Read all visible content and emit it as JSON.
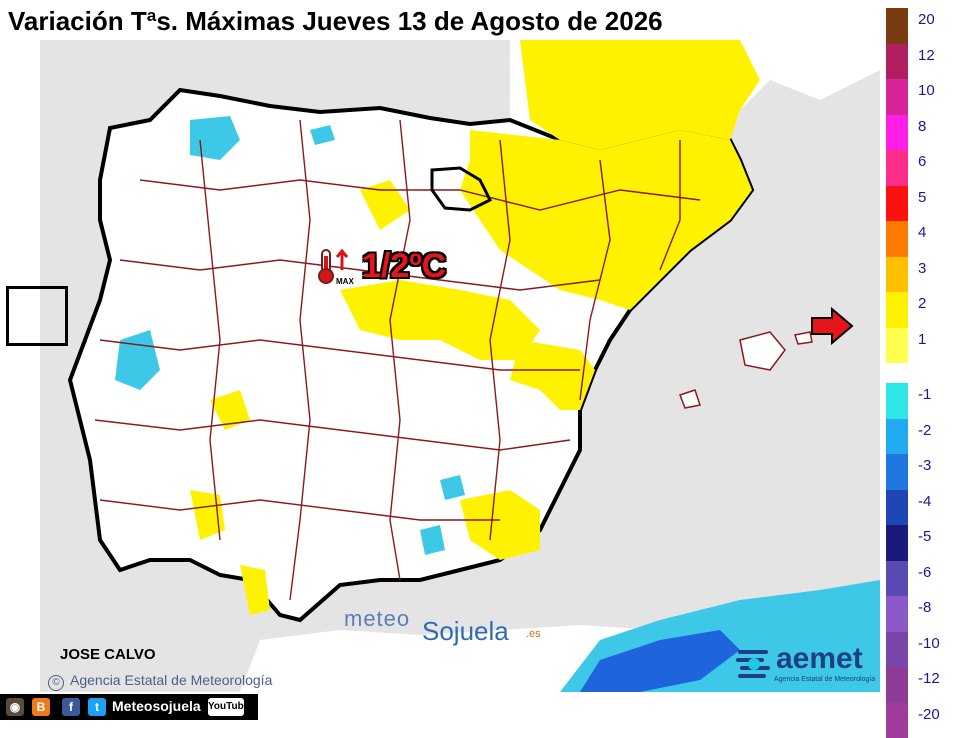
{
  "title": "Variación Tªs. Máximas Jueves 13 de Agosto de 2026",
  "badge": {
    "value": "1/2ºC",
    "icon": "thermometer-max-icon"
  },
  "legend": {
    "items": [
      {
        "label": "20",
        "color": "#7a3a12"
      },
      {
        "label": "12",
        "color": "#b02060"
      },
      {
        "label": "10",
        "color": "#d6249a"
      },
      {
        "label": "8",
        "color": "#ff1ee6"
      },
      {
        "label": "6",
        "color": "#ff2d8a"
      },
      {
        "label": "5",
        "color": "#ff1010"
      },
      {
        "label": "4",
        "color": "#ff7a00"
      },
      {
        "label": "3",
        "color": "#ffc000"
      },
      {
        "label": "2",
        "color": "#fff200"
      },
      {
        "label": "1",
        "color": "#ffff50"
      },
      {
        "label": "-1",
        "color": "#2ee6e6"
      },
      {
        "label": "-2",
        "color": "#22aaf0"
      },
      {
        "label": "-3",
        "color": "#1e78e0"
      },
      {
        "label": "-4",
        "color": "#1e46b4"
      },
      {
        "label": "-5",
        "color": "#1a1a7a"
      },
      {
        "label": "-6",
        "color": "#5a4ab4"
      },
      {
        "label": "-8",
        "color": "#8c5ac8"
      },
      {
        "label": "-10",
        "color": "#7a46aa"
      },
      {
        "label": "-12",
        "color": "#8c3c96"
      },
      {
        "label": "-20",
        "color": "#a03c9c"
      }
    ],
    "highlighted": [
      "2",
      "1"
    ],
    "arrow_color": "#e8141c"
  },
  "footer": {
    "author": "JOSE CALVO",
    "agency": "Agencia Estatal de Meteorología",
    "watermark": {
      "meteo": "meteo",
      "sojuela": "Sojuela",
      "tld": ".es"
    },
    "aemet": {
      "name": "aemet",
      "sub": "Agencia Estatal de Meteorología"
    },
    "social": {
      "handle": "Meteosojuela",
      "youtube": "YouTube"
    }
  },
  "map_colors": {
    "sea": "#e4e4e4",
    "land": "#ffffff",
    "positive": "#fff200",
    "negative": "#3cc8e6",
    "strong_negative": "#1e64dc",
    "borders": "#8b1a1a",
    "coast": "#000000"
  }
}
